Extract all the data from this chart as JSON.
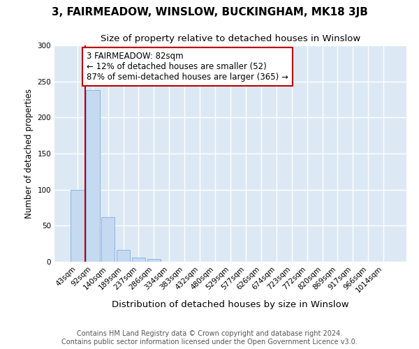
{
  "title": "3, FAIRMEADOW, WINSLOW, BUCKINGHAM, MK18 3JB",
  "subtitle": "Size of property relative to detached houses in Winslow",
  "xlabel": "Distribution of detached houses by size in Winslow",
  "ylabel": "Number of detached properties",
  "bar_values": [
    100,
    238,
    62,
    16,
    6,
    4,
    0,
    0,
    0,
    0,
    0,
    0,
    0,
    0,
    0,
    0,
    0,
    0,
    0,
    0,
    0
  ],
  "bar_labels": [
    "43sqm",
    "92sqm",
    "140sqm",
    "189sqm",
    "237sqm",
    "286sqm",
    "334sqm",
    "383sqm",
    "432sqm",
    "480sqm",
    "529sqm",
    "577sqm",
    "626sqm",
    "674sqm",
    "723sqm",
    "772sqm",
    "820sqm",
    "869sqm",
    "917sqm",
    "966sqm",
    "1014sqm"
  ],
  "bar_color": "#c5d9f1",
  "bar_edge_color": "#8db4e2",
  "ylim": [
    0,
    300
  ],
  "yticks": [
    0,
    50,
    100,
    150,
    200,
    250,
    300
  ],
  "vline_x": 0.5,
  "property_label": "3 FAIRMEADOW: 82sqm",
  "annotation_line1": "← 12% of detached houses are smaller (52)",
  "annotation_line2": "87% of semi-detached houses are larger (365) →",
  "vline_color": "#c00000",
  "annotation_box_color": "#ffffff",
  "annotation_box_edge": "#c00000",
  "footer_line1": "Contains HM Land Registry data © Crown copyright and database right 2024.",
  "footer_line2": "Contains public sector information licensed under the Open Government Licence v3.0.",
  "fig_bg_color": "#ffffff",
  "plot_bg_color": "#dce9f5",
  "grid_color": "#ffffff",
  "title_fontsize": 11,
  "subtitle_fontsize": 9.5,
  "xlabel_fontsize": 9.5,
  "ylabel_fontsize": 8.5,
  "tick_fontsize": 7.5,
  "footer_fontsize": 7,
  "annotation_fontsize": 8.5
}
